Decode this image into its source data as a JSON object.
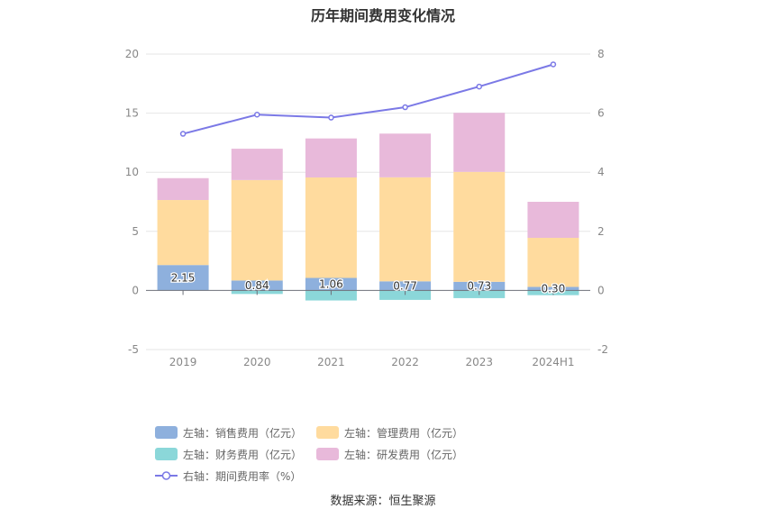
{
  "title": "历年期间费用变化情况",
  "source": "数据来源：恒生聚源",
  "colors": {
    "sales": "#8eb0dd",
    "admin": "#ffdb9e",
    "finance": "#8bd7d9",
    "rnd": "#e8b9da",
    "rate": "#7b79e6"
  },
  "legend": [
    {
      "key": "sales",
      "label": "左轴：销售费用（亿元）",
      "kind": "bar"
    },
    {
      "key": "admin",
      "label": "左轴：管理费用（亿元）",
      "kind": "bar"
    },
    {
      "key": "finance",
      "label": "左轴：财务费用（亿元）",
      "kind": "bar"
    },
    {
      "key": "rnd",
      "label": "左轴：研发费用（亿元）",
      "kind": "bar"
    },
    {
      "key": "rate",
      "label": "右轴：期间费用率（%）",
      "kind": "line"
    }
  ],
  "chart_data": {
    "type": "bar",
    "stacked": true,
    "categories": [
      "2019",
      "2020",
      "2021",
      "2022",
      "2023",
      "2024H1"
    ],
    "series": [
      {
        "key": "sales",
        "name": "左轴：销售费用（亿元）",
        "axis": "left",
        "values": [
          2.15,
          0.84,
          1.06,
          0.77,
          0.73,
          0.3
        ],
        "labels": [
          "2.15",
          "0.84",
          "1.06",
          "0.77",
          "0.73",
          "0.30"
        ]
      },
      {
        "key": "admin",
        "name": "左轴：管理费用（亿元）",
        "axis": "left",
        "values": [
          5.5,
          8.5,
          8.5,
          8.8,
          9.3,
          4.15
        ]
      },
      {
        "key": "finance",
        "name": "左轴：财务费用（亿元）",
        "axis": "left",
        "values": [
          0,
          -0.3,
          -0.85,
          -0.8,
          -0.65,
          -0.4
        ]
      },
      {
        "key": "rnd",
        "name": "左轴：研发费用（亿元）",
        "axis": "left",
        "values": [
          1.85,
          2.65,
          3.3,
          3.7,
          5.0,
          3.05
        ]
      },
      {
        "key": "rate",
        "name": "右轴：期间费用率（%）",
        "axis": "right",
        "type": "line",
        "values": [
          5.3,
          5.95,
          5.85,
          6.2,
          6.9,
          7.65
        ]
      }
    ],
    "left_axis": {
      "ylim": [
        -5,
        20
      ],
      "ticks": [
        -5,
        0,
        5,
        10,
        15,
        20
      ]
    },
    "right_axis": {
      "ylim": [
        -2,
        8
      ],
      "ticks": [
        -2,
        0,
        2,
        4,
        6,
        8
      ]
    },
    "grid": true,
    "legend_position": "bottom"
  }
}
